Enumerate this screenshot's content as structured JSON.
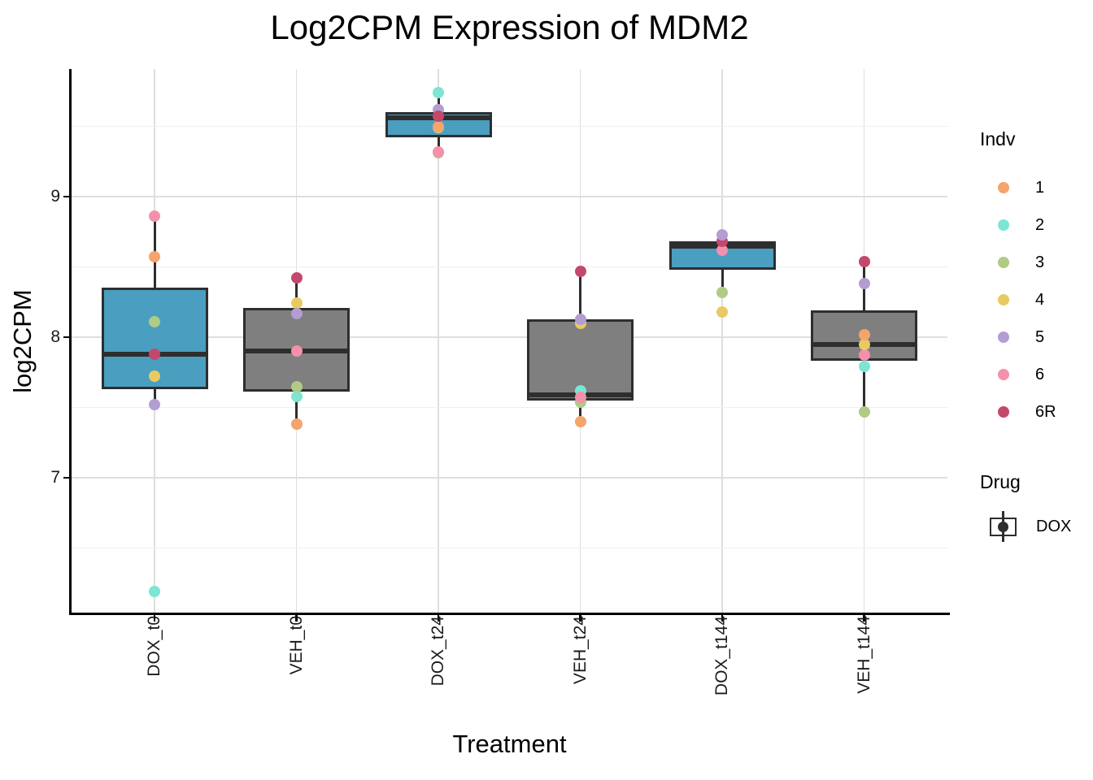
{
  "chart_data": {
    "type": "boxplot",
    "title": "Log2CPM Expression of MDM2",
    "xlabel": "Treatment",
    "ylabel": "log2CPM",
    "x_categories": [
      "DOX_t0",
      "VEH_t0",
      "DOX_t24",
      "VEH_t24",
      "DOX_t144",
      "VEH_t144"
    ],
    "y_axis": {
      "ticks": [
        9,
        8,
        7
      ],
      "minor_gridlines": [
        9.5,
        8.5,
        7.5,
        6.5
      ],
      "range_shown": [
        6.03,
        9.91
      ]
    },
    "box_outline_color": "#2E2E2E",
    "drug_colors": {
      "DOX": "#4A9EC0",
      "VEH": "#7F7F7F"
    },
    "indv_colors": {
      "1": "#F5A46B",
      "2": "#7DE5D3",
      "3": "#AFCB85",
      "4": "#E7CB62",
      "5": "#B39DD2",
      "6": "#F391AC",
      "6R": "#C4486C"
    },
    "boxes": [
      {
        "category": "DOX_t0",
        "drug": "DOX",
        "q1": 7.63,
        "median": 7.88,
        "q3": 8.35,
        "whisker_low": 7.52,
        "whisker_high": 8.86,
        "points": [
          {
            "indv": "2",
            "value": 6.19
          },
          {
            "indv": "5",
            "value": 7.52
          },
          {
            "indv": "4",
            "value": 7.72
          },
          {
            "indv": "6R",
            "value": 7.88
          },
          {
            "indv": "3",
            "value": 8.11
          },
          {
            "indv": "1",
            "value": 8.57
          },
          {
            "indv": "6",
            "value": 8.86
          }
        ]
      },
      {
        "category": "VEH_t0",
        "drug": "VEH",
        "q1": 7.61,
        "median": 7.9,
        "q3": 8.21,
        "whisker_low": 7.39,
        "whisker_high": 8.42,
        "points": [
          {
            "indv": "1",
            "value": 7.38
          },
          {
            "indv": "2",
            "value": 7.58
          },
          {
            "indv": "3",
            "value": 7.65
          },
          {
            "indv": "6",
            "value": 7.9
          },
          {
            "indv": "4",
            "value": 8.24
          },
          {
            "indv": "5",
            "value": 8.17
          },
          {
            "indv": "6R",
            "value": 8.42
          }
        ]
      },
      {
        "category": "DOX_t24",
        "drug": "DOX",
        "q1": 9.42,
        "median": 9.56,
        "q3": 9.6,
        "whisker_low": 9.34,
        "whisker_high": 9.72,
        "points": [
          {
            "indv": "4",
            "value": 9.49
          },
          {
            "indv": "3",
            "value": 9.31
          },
          {
            "indv": "6",
            "value": 9.32
          },
          {
            "indv": "1",
            "value": 9.5
          },
          {
            "indv": "5",
            "value": 9.62
          },
          {
            "indv": "6R",
            "value": 9.57
          },
          {
            "indv": "2",
            "value": 9.74
          }
        ]
      },
      {
        "category": "VEH_t24",
        "drug": "VEH",
        "q1": 7.55,
        "median": 7.59,
        "q3": 8.13,
        "whisker_low": 7.4,
        "whisker_high": 8.47,
        "points": [
          {
            "indv": "4",
            "value": 8.1
          },
          {
            "indv": "3",
            "value": 7.54
          },
          {
            "indv": "2",
            "value": 7.62
          },
          {
            "indv": "6",
            "value": 7.57
          },
          {
            "indv": "1",
            "value": 7.4
          },
          {
            "indv": "5",
            "value": 8.13
          },
          {
            "indv": "6R",
            "value": 8.47
          }
        ]
      },
      {
        "category": "DOX_t144",
        "drug": "DOX",
        "q1": 8.48,
        "median": 8.65,
        "q3": 8.68,
        "whisker_low": 8.36,
        "whisker_high": 8.68,
        "points": [
          {
            "indv": "4",
            "value": 8.18
          },
          {
            "indv": "3",
            "value": 8.32
          },
          {
            "indv": "6",
            "value": 8.62
          },
          {
            "indv": "6R",
            "value": 8.68
          },
          {
            "indv": "5",
            "value": 8.73
          }
        ]
      },
      {
        "category": "VEH_t144",
        "drug": "VEH",
        "q1": 7.83,
        "median": 7.95,
        "q3": 8.19,
        "whisker_low": 7.47,
        "whisker_high": 8.54,
        "points": [
          {
            "indv": "3",
            "value": 7.47
          },
          {
            "indv": "2",
            "value": 7.79
          },
          {
            "indv": "6",
            "value": 7.87
          },
          {
            "indv": "4",
            "value": 7.95
          },
          {
            "indv": "1",
            "value": 8.02
          },
          {
            "indv": "5",
            "value": 8.38
          },
          {
            "indv": "6R",
            "value": 8.54
          }
        ]
      }
    ],
    "legend": {
      "indv": {
        "title": "Indv",
        "entries": [
          {
            "label": "1",
            "color": "#F5A46B"
          },
          {
            "label": "2",
            "color": "#7DE5D3"
          },
          {
            "label": "3",
            "color": "#AFCB85"
          },
          {
            "label": "4",
            "color": "#E7CB62"
          },
          {
            "label": "5",
            "color": "#B39DD2"
          },
          {
            "label": "6",
            "color": "#F391AC"
          },
          {
            "label": "6R",
            "color": "#C4486C"
          }
        ]
      },
      "drug": {
        "title": "Drug",
        "entries": [
          {
            "label": "DOX",
            "color": "#4A9EC0"
          }
        ]
      }
    }
  }
}
